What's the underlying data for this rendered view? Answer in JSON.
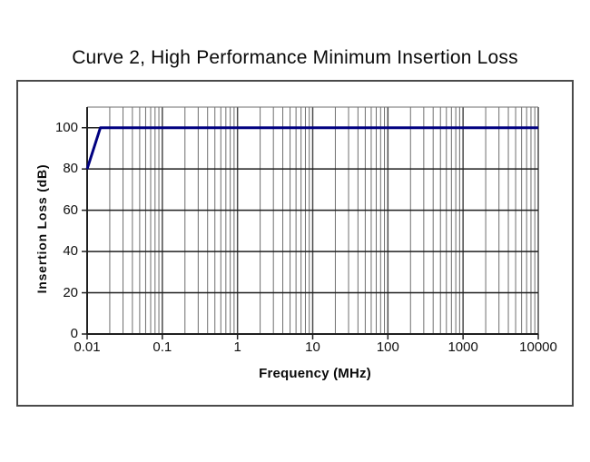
{
  "page": {
    "background_color": "#ffffff"
  },
  "chart_data": {
    "type": "line",
    "title": "Curve 2, High Performance Minimum Insertion Loss",
    "xlabel": "Frequency (MHz)",
    "ylabel": "Insertion Loss (dB)",
    "x_scale": "log",
    "xlim": [
      0.01,
      10000
    ],
    "ylim": [
      0,
      110
    ],
    "x_ticks": [
      0.01,
      0.1,
      1,
      10,
      100,
      1000,
      10000
    ],
    "x_tick_labels": [
      "0.01",
      "0.1",
      "1",
      "10",
      "100",
      "1000",
      "10000"
    ],
    "y_ticks": [
      0,
      20,
      40,
      60,
      80,
      100
    ],
    "y_tick_labels": [
      "0",
      "20",
      "40",
      "60",
      "80",
      "100"
    ],
    "grid": "major horizontal lines every 20 dB; log minor vertical lines (2-9 per decade) plus major decade lines",
    "legend": "none",
    "series": [
      {
        "name": "Curve 2 minimum insertion loss",
        "color": "#000080",
        "points": [
          [
            0.01,
            80
          ],
          [
            0.015,
            100
          ],
          [
            10000,
            100
          ]
        ]
      }
    ]
  }
}
